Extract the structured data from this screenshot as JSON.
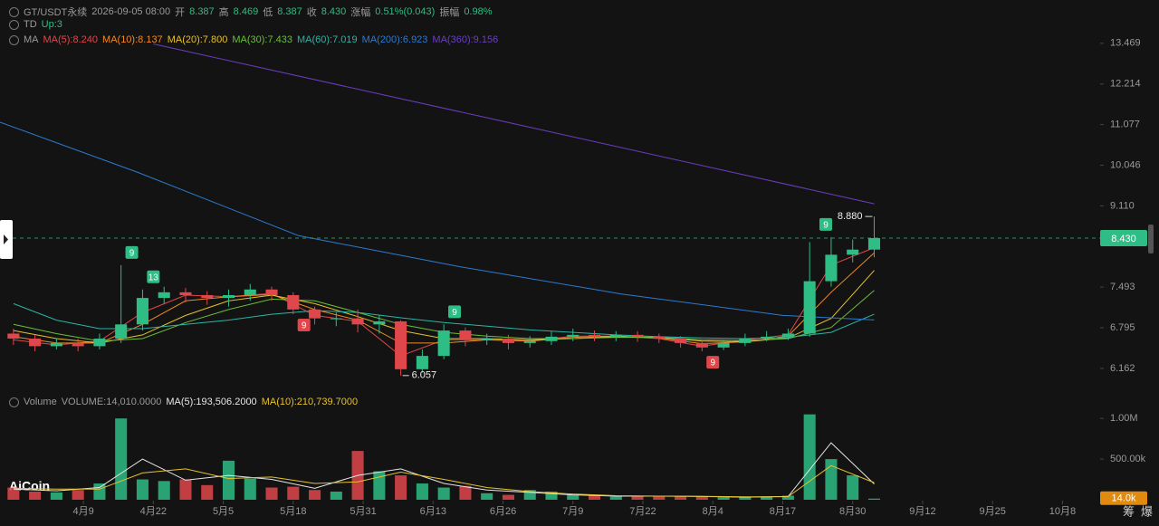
{
  "header": {
    "symbol": "GT/USDT永续",
    "time": "2026-09-05 08:00",
    "fields": [
      {
        "label": "开",
        "value": "8.387"
      },
      {
        "label": "高",
        "value": "8.469"
      },
      {
        "label": "低",
        "value": "8.387"
      },
      {
        "label": "收",
        "value": "8.430"
      },
      {
        "label": "涨幅",
        "value": "0.51%(0.043)"
      },
      {
        "label": "振幅",
        "value": "0.98%"
      }
    ],
    "td_label": "TD",
    "td_value": "Up:3",
    "ma_label": "MA",
    "volume_label": "Volume",
    "volume_value": "VOLUME:14,010.0000",
    "logo": "AiCoin",
    "buttons": [
      "筹",
      "爆"
    ]
  },
  "chart_data": [
    {
      "type": "candlestick",
      "log_scale": true,
      "up_color": "#2ebd85",
      "down_color": "#e0474b",
      "xlim": [
        -15.5,
        189
      ],
      "ylim": [
        5.86,
        13.7
      ],
      "xticks": [
        {
          "value": 0,
          "label": "4月9"
        },
        {
          "value": 13,
          "label": "4月22"
        },
        {
          "value": 26,
          "label": "5月5"
        },
        {
          "value": 39,
          "label": "5月18"
        },
        {
          "value": 52,
          "label": "5月31"
        },
        {
          "value": 65,
          "label": "6月13"
        },
        {
          "value": 78,
          "label": "6月26"
        },
        {
          "value": 91,
          "label": "7月9"
        },
        {
          "value": 104,
          "label": "7月22"
        },
        {
          "value": 117,
          "label": "8月4"
        },
        {
          "value": 130,
          "label": "8月17"
        },
        {
          "value": 143,
          "label": "8月30"
        },
        {
          "value": 156,
          "label": "9月12"
        },
        {
          "value": 169,
          "label": "9月25"
        },
        {
          "value": 182,
          "label": "10月8"
        }
      ],
      "yticks": [
        13.469,
        12.214,
        11.077,
        10.046,
        {
          "value": 9.11,
          "label": "9.110"
        },
        7.493,
        6.795,
        6.162
      ],
      "x": [
        -13,
        -9,
        -5,
        -1,
        3,
        7,
        11,
        15,
        19,
        23,
        27,
        31,
        35,
        39,
        43,
        47,
        51,
        55,
        59,
        63,
        67,
        71,
        75,
        79,
        83,
        87,
        91,
        95,
        99,
        103,
        107,
        111,
        115,
        119,
        123,
        127,
        131,
        135,
        139,
        143,
        147
      ],
      "open": [
        6.7,
        6.62,
        6.5,
        6.55,
        6.5,
        6.62,
        6.85,
        7.3,
        7.4,
        7.35,
        7.3,
        7.35,
        7.45,
        7.35,
        7.1,
        6.95,
        6.95,
        6.85,
        6.9,
        6.15,
        6.35,
        6.75,
        6.6,
        6.62,
        6.55,
        6.58,
        6.65,
        6.68,
        6.65,
        6.68,
        6.65,
        6.62,
        6.55,
        6.48,
        6.55,
        6.62,
        6.65,
        6.7,
        7.6,
        8.1,
        8.2
      ],
      "high": [
        6.78,
        6.68,
        6.62,
        6.62,
        6.7,
        7.9,
        7.45,
        7.5,
        7.48,
        7.42,
        7.45,
        7.55,
        7.5,
        7.4,
        7.15,
        7.05,
        7.1,
        7.0,
        6.92,
        6.45,
        6.85,
        6.8,
        6.7,
        6.68,
        6.66,
        6.74,
        6.78,
        6.75,
        6.74,
        6.74,
        6.7,
        6.66,
        6.6,
        6.6,
        6.7,
        6.74,
        6.78,
        8.35,
        8.45,
        8.4,
        8.88
      ],
      "low": [
        6.52,
        6.42,
        6.45,
        6.42,
        6.45,
        6.55,
        6.75,
        7.2,
        7.22,
        7.18,
        7.15,
        7.25,
        7.25,
        7.02,
        6.85,
        6.82,
        6.72,
        6.7,
        6.057,
        6.1,
        6.3,
        6.5,
        6.52,
        6.45,
        6.48,
        6.52,
        6.58,
        6.58,
        6.58,
        6.57,
        6.55,
        6.48,
        6.42,
        6.44,
        6.5,
        6.58,
        6.6,
        6.65,
        7.5,
        7.95,
        8.05
      ],
      "close": [
        6.62,
        6.5,
        6.55,
        6.5,
        6.62,
        6.85,
        7.3,
        7.4,
        7.35,
        7.3,
        7.35,
        7.45,
        7.35,
        7.1,
        6.95,
        6.95,
        6.85,
        6.9,
        6.15,
        6.35,
        6.75,
        6.6,
        6.62,
        6.55,
        6.58,
        6.65,
        6.68,
        6.65,
        6.68,
        6.65,
        6.62,
        6.55,
        6.48,
        6.55,
        6.62,
        6.65,
        6.7,
        7.6,
        8.1,
        8.2,
        8.43
      ],
      "max_label": "8.880",
      "min_label": "6.057",
      "current_price": {
        "value": 8.43,
        "label": "8.430"
      },
      "td_marks": [
        {
          "count": 9,
          "day": 9,
          "direction": "up"
        },
        {
          "count": 13,
          "day": 13,
          "direction": "up"
        },
        {
          "count": 9,
          "day": 41,
          "direction": "down"
        },
        {
          "count": 9,
          "day": 69,
          "direction": "up"
        },
        {
          "count": 9,
          "day": 117,
          "direction": "down"
        },
        {
          "count": 9,
          "day": 138,
          "direction": "up"
        }
      ],
      "series": [
        {
          "name": "MA(5):8.240",
          "color": "#e0474b",
          "x": [
            -13,
            -5,
            3,
            11,
            19,
            27,
            35,
            43,
            51,
            59,
            67,
            75,
            83,
            91,
            99,
            107,
            115,
            123,
            131,
            139,
            147
          ],
          "values": [
            6.6,
            6.52,
            6.58,
            7.05,
            7.35,
            7.32,
            7.38,
            7.0,
            6.9,
            6.35,
            6.6,
            6.6,
            6.58,
            6.66,
            6.66,
            6.62,
            6.5,
            6.6,
            6.68,
            7.9,
            8.24
          ]
        },
        {
          "name": "MA(10):8.137",
          "color": "#f08a24",
          "x": [
            -13,
            -5,
            3,
            11,
            19,
            27,
            35,
            43,
            51,
            59,
            67,
            75,
            83,
            91,
            99,
            107,
            115,
            123,
            131,
            139,
            147
          ],
          "values": [
            6.65,
            6.55,
            6.55,
            6.85,
            7.25,
            7.32,
            7.36,
            7.1,
            6.92,
            6.55,
            6.55,
            6.6,
            6.58,
            6.64,
            6.66,
            6.63,
            6.54,
            6.57,
            6.66,
            7.4,
            8.137
          ]
        },
        {
          "name": "MA(20):7.800",
          "color": "#e5c12d",
          "x": [
            -13,
            -5,
            3,
            11,
            19,
            27,
            35,
            43,
            51,
            59,
            67,
            75,
            83,
            91,
            99,
            107,
            115,
            123,
            131,
            139,
            147
          ],
          "values": [
            6.75,
            6.62,
            6.55,
            6.68,
            7.0,
            7.25,
            7.35,
            7.2,
            6.98,
            6.75,
            6.62,
            6.62,
            6.6,
            6.62,
            6.65,
            6.64,
            6.58,
            6.57,
            6.63,
            6.95,
            7.8
          ]
        },
        {
          "name": "MA(30):7.433",
          "color": "#6cbf3a",
          "x": [
            -13,
            -5,
            3,
            11,
            19,
            27,
            35,
            43,
            51,
            59,
            67,
            75,
            83,
            91,
            99,
            107,
            115,
            123,
            131,
            139,
            147
          ],
          "values": [
            6.85,
            6.7,
            6.58,
            6.62,
            6.88,
            7.1,
            7.28,
            7.25,
            7.05,
            6.85,
            6.72,
            6.66,
            6.62,
            6.62,
            6.64,
            6.64,
            6.6,
            6.59,
            6.62,
            6.8,
            7.433
          ]
        },
        {
          "name": "MA(60):7.019",
          "color": "#2bb5a6",
          "x": [
            -13,
            -5,
            3,
            11,
            19,
            27,
            35,
            43,
            51,
            59,
            67,
            75,
            83,
            91,
            99,
            107,
            115,
            123,
            131,
            139,
            147
          ],
          "values": [
            7.2,
            6.92,
            6.78,
            6.78,
            6.85,
            6.92,
            7.02,
            7.08,
            7.05,
            6.96,
            6.88,
            6.82,
            6.76,
            6.72,
            6.68,
            6.65,
            6.63,
            6.62,
            6.64,
            6.72,
            7.019
          ]
        },
        {
          "name": "MA(200):6.923",
          "color": "#2b7bd1",
          "x": [
            -15.5,
            10,
            40,
            70,
            100,
            130,
            147
          ],
          "values": [
            11.14,
            9.88,
            8.48,
            7.87,
            7.37,
            7.0,
            6.923
          ]
        },
        {
          "name": "MA(360):9.156",
          "color": "#6a3fc2",
          "x": [
            13,
            80,
            147
          ],
          "values": [
            13.45,
            11.1,
            9.156
          ]
        }
      ]
    },
    {
      "type": "bar",
      "xlim": [
        -15.5,
        189
      ],
      "ylim": [
        0,
        1080000
      ],
      "yticks": [
        {
          "value": 1000000,
          "label": "1.00M"
        },
        {
          "value": 500000,
          "label": "500.00k"
        }
      ],
      "current_label": {
        "value": 14010,
        "label": "14.0k"
      },
      "x": [
        -13,
        -9,
        -5,
        -1,
        3,
        7,
        11,
        15,
        19,
        23,
        27,
        31,
        35,
        39,
        43,
        47,
        51,
        55,
        59,
        63,
        67,
        71,
        75,
        79,
        83,
        87,
        91,
        95,
        99,
        103,
        107,
        111,
        115,
        119,
        123,
        127,
        131,
        135,
        139,
        143,
        147
      ],
      "values": [
        150000,
        100000,
        90000,
        120000,
        200000,
        1000000,
        250000,
        230000,
        250000,
        180000,
        480000,
        260000,
        150000,
        160000,
        120000,
        100000,
        600000,
        350000,
        300000,
        200000,
        150000,
        170000,
        80000,
        60000,
        120000,
        100000,
        60000,
        50000,
        40000,
        40000,
        50000,
        40000,
        40000,
        30000,
        30000,
        40000,
        50000,
        1050000,
        500000,
        300000,
        14010
      ],
      "series": [
        {
          "name": "MA(5):193,506.2000",
          "color": "#e6e6e6",
          "x": [
            -13,
            -5,
            3,
            11,
            19,
            27,
            35,
            43,
            51,
            59,
            67,
            75,
            83,
            91,
            99,
            107,
            115,
            123,
            131,
            139,
            147
          ],
          "values": [
            130000,
            110000,
            150000,
            500000,
            240000,
            300000,
            250000,
            140000,
            300000,
            380000,
            200000,
            120000,
            90000,
            60000,
            45000,
            45000,
            40000,
            32000,
            40000,
            700000,
            193506.2
          ]
        },
        {
          "name": "MA(10):210,739.7000",
          "color": "#e5c12d",
          "x": [
            -13,
            -5,
            3,
            11,
            19,
            27,
            35,
            43,
            51,
            59,
            67,
            75,
            83,
            91,
            99,
            107,
            115,
            123,
            131,
            139,
            147
          ],
          "values": [
            140000,
            130000,
            130000,
            330000,
            380000,
            260000,
            280000,
            200000,
            220000,
            340000,
            250000,
            150000,
            100000,
            70000,
            50000,
            45000,
            42000,
            36000,
            38000,
            420000,
            210739.7
          ]
        }
      ]
    }
  ]
}
